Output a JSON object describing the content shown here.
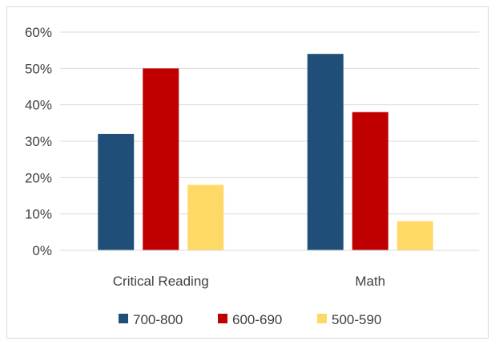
{
  "chart_data": {
    "type": "bar",
    "title": "",
    "xlabel": "",
    "ylabel": "",
    "categories": [
      "Critical Reading",
      "Math"
    ],
    "series": [
      {
        "name": "700-800",
        "color": "#1f4e79",
        "values": [
          32,
          54
        ]
      },
      {
        "name": "600-690",
        "color": "#c00000",
        "values": [
          50,
          38
        ]
      },
      {
        "name": "500-590",
        "color": "#ffd966",
        "values": [
          18,
          8
        ]
      }
    ],
    "ylim": [
      0,
      60
    ],
    "yticks": [
      0,
      10,
      20,
      30,
      40,
      50,
      60
    ],
    "ytick_labels": [
      "0%",
      "10%",
      "20%",
      "30%",
      "40%",
      "50%",
      "60%"
    ],
    "grid": true,
    "legend_position": "bottom"
  }
}
